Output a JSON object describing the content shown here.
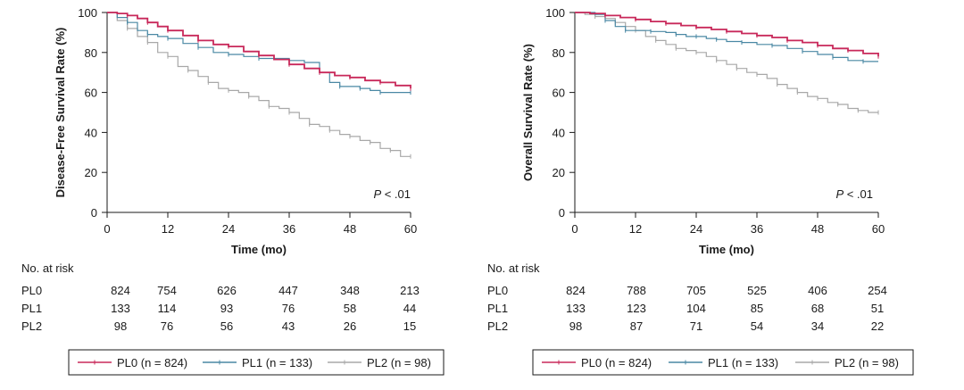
{
  "chart_data": [
    {
      "type": "line",
      "title": "",
      "xlabel": "Time (mo)",
      "ylabel": "Disease-Free Survival Rate (%)",
      "xlim": [
        0,
        60
      ],
      "ylim": [
        0,
        100
      ],
      "xticks": [
        "0",
        "12",
        "24",
        "36",
        "48",
        "60"
      ],
      "yticks": [
        "0",
        "20",
        "40",
        "60",
        "80",
        "100"
      ],
      "annotation_italic": "P",
      "annotation_rest": " < .01",
      "series": [
        {
          "name": "PL0",
          "color": "#c8285a",
          "points": [
            [
              0,
              100
            ],
            [
              2,
              99.5
            ],
            [
              4,
              98.5
            ],
            [
              6,
              97
            ],
            [
              8,
              95
            ],
            [
              10,
              93
            ],
            [
              12,
              91
            ],
            [
              15,
              88.5
            ],
            [
              18,
              86
            ],
            [
              21,
              84
            ],
            [
              24,
              83
            ],
            [
              27,
              80.5
            ],
            [
              30,
              78.5
            ],
            [
              33,
              76.5
            ],
            [
              36,
              74
            ],
            [
              39,
              72
            ],
            [
              42,
              70
            ],
            [
              45,
              68.5
            ],
            [
              48,
              67.5
            ],
            [
              51,
              66
            ],
            [
              54,
              65
            ],
            [
              57,
              63.5
            ],
            [
              60,
              62
            ]
          ]
        },
        {
          "name": "PL1",
          "color": "#4a88a4",
          "points": [
            [
              0,
              100
            ],
            [
              2,
              97.5
            ],
            [
              4,
              95
            ],
            [
              6,
              91
            ],
            [
              8,
              89
            ],
            [
              10,
              88
            ],
            [
              12,
              87
            ],
            [
              15,
              84.5
            ],
            [
              18,
              82.5
            ],
            [
              21,
              80
            ],
            [
              24,
              79
            ],
            [
              27,
              78
            ],
            [
              30,
              77
            ],
            [
              33,
              77
            ],
            [
              36,
              76
            ],
            [
              39,
              75
            ],
            [
              42,
              70
            ],
            [
              44,
              65
            ],
            [
              46,
              63
            ],
            [
              48,
              63
            ],
            [
              50,
              62
            ],
            [
              52,
              61
            ],
            [
              54,
              60
            ],
            [
              57,
              60
            ],
            [
              60,
              60
            ]
          ]
        },
        {
          "name": "PL2",
          "color": "#a8a8a8",
          "points": [
            [
              0,
              100
            ],
            [
              2,
              96
            ],
            [
              4,
              92
            ],
            [
              6,
              88
            ],
            [
              8,
              85
            ],
            [
              10,
              80
            ],
            [
              12,
              78
            ],
            [
              14,
              73
            ],
            [
              16,
              71
            ],
            [
              18,
              68
            ],
            [
              20,
              65
            ],
            [
              22,
              62
            ],
            [
              24,
              61
            ],
            [
              26,
              60
            ],
            [
              28,
              58
            ],
            [
              30,
              56
            ],
            [
              32,
              53
            ],
            [
              34,
              52
            ],
            [
              36,
              50
            ],
            [
              38,
              47
            ],
            [
              40,
              44
            ],
            [
              42,
              43
            ],
            [
              44,
              41
            ],
            [
              46,
              39
            ],
            [
              48,
              38
            ],
            [
              50,
              36
            ],
            [
              52,
              35
            ],
            [
              54,
              32
            ],
            [
              56,
              31
            ],
            [
              58,
              28
            ],
            [
              60,
              28
            ]
          ]
        }
      ],
      "at_risk": {
        "title": "No. at risk",
        "rows": [
          {
            "label": "PL0",
            "values": [
              "824",
              "754",
              "626",
              "447",
              "348",
              "213"
            ]
          },
          {
            "label": "PL1",
            "values": [
              "133",
              "114",
              "93",
              "76",
              "58",
              "44"
            ]
          },
          {
            "label": "PL2",
            "values": [
              "98",
              "76",
              "56",
              "43",
              "26",
              "15"
            ]
          }
        ]
      },
      "legend": [
        "PL0 (n = 824)",
        "PL1 (n = 133)",
        "PL2 (n = 98)"
      ]
    },
    {
      "type": "line",
      "title": "",
      "xlabel": "Time (mo)",
      "ylabel": "Overall Survival Rate (%)",
      "xlim": [
        0,
        60
      ],
      "ylim": [
        0,
        100
      ],
      "xticks": [
        "0",
        "12",
        "24",
        "36",
        "48",
        "60"
      ],
      "yticks": [
        "0",
        "20",
        "40",
        "60",
        "80",
        "100"
      ],
      "annotation_italic": "P",
      "annotation_rest": " < .01",
      "series": [
        {
          "name": "PL0",
          "color": "#c8285a",
          "points": [
            [
              0,
              100
            ],
            [
              3,
              99.5
            ],
            [
              6,
              98.5
            ],
            [
              9,
              97.5
            ],
            [
              12,
              96.5
            ],
            [
              15,
              95.5
            ],
            [
              18,
              94.5
            ],
            [
              21,
              93.5
            ],
            [
              24,
              92.5
            ],
            [
              27,
              91.5
            ],
            [
              30,
              90.5
            ],
            [
              33,
              89.5
            ],
            [
              36,
              88.5
            ],
            [
              39,
              87.5
            ],
            [
              42,
              86
            ],
            [
              45,
              85
            ],
            [
              48,
              83.5
            ],
            [
              51,
              82
            ],
            [
              54,
              81
            ],
            [
              57,
              79.5
            ],
            [
              60,
              78
            ]
          ]
        },
        {
          "name": "PL1",
          "color": "#4a88a4",
          "points": [
            [
              0,
              100
            ],
            [
              4,
              99
            ],
            [
              6,
              96
            ],
            [
              8,
              93
            ],
            [
              10,
              91
            ],
            [
              12,
              91
            ],
            [
              15,
              90.5
            ],
            [
              18,
              90
            ],
            [
              20,
              89
            ],
            [
              22,
              88
            ],
            [
              24,
              88
            ],
            [
              26,
              87
            ],
            [
              28,
              86.5
            ],
            [
              30,
              85.5
            ],
            [
              33,
              85
            ],
            [
              36,
              84
            ],
            [
              39,
              83.5
            ],
            [
              42,
              82
            ],
            [
              45,
              80.5
            ],
            [
              48,
              79
            ],
            [
              51,
              77.5
            ],
            [
              54,
              76
            ],
            [
              57,
              75.5
            ],
            [
              60,
              75.5
            ]
          ]
        },
        {
          "name": "PL2",
          "color": "#a8a8a8",
          "points": [
            [
              0,
              100
            ],
            [
              2,
              99
            ],
            [
              4,
              98
            ],
            [
              6,
              97
            ],
            [
              8,
              95
            ],
            [
              10,
              93
            ],
            [
              12,
              91
            ],
            [
              14,
              88
            ],
            [
              16,
              86
            ],
            [
              18,
              84
            ],
            [
              20,
              82
            ],
            [
              22,
              81
            ],
            [
              24,
              80
            ],
            [
              26,
              78
            ],
            [
              28,
              76
            ],
            [
              30,
              74
            ],
            [
              32,
              72
            ],
            [
              34,
              70
            ],
            [
              36,
              69
            ],
            [
              38,
              67
            ],
            [
              40,
              64
            ],
            [
              42,
              62
            ],
            [
              44,
              60
            ],
            [
              46,
              58
            ],
            [
              48,
              57
            ],
            [
              50,
              55
            ],
            [
              52,
              54
            ],
            [
              54,
              52
            ],
            [
              56,
              51
            ],
            [
              58,
              50
            ],
            [
              60,
              50
            ]
          ]
        }
      ],
      "at_risk": {
        "title": "No. at risk",
        "rows": [
          {
            "label": "PL0",
            "values": [
              "824",
              "788",
              "705",
              "525",
              "406",
              "254"
            ]
          },
          {
            "label": "PL1",
            "values": [
              "133",
              "123",
              "104",
              "85",
              "68",
              "51"
            ]
          },
          {
            "label": "PL2",
            "values": [
              "98",
              "87",
              "71",
              "54",
              "34",
              "22"
            ]
          }
        ]
      },
      "legend": [
        "PL0 (n = 824)",
        "PL1 (n = 133)",
        "PL2 (n = 98)"
      ]
    }
  ]
}
